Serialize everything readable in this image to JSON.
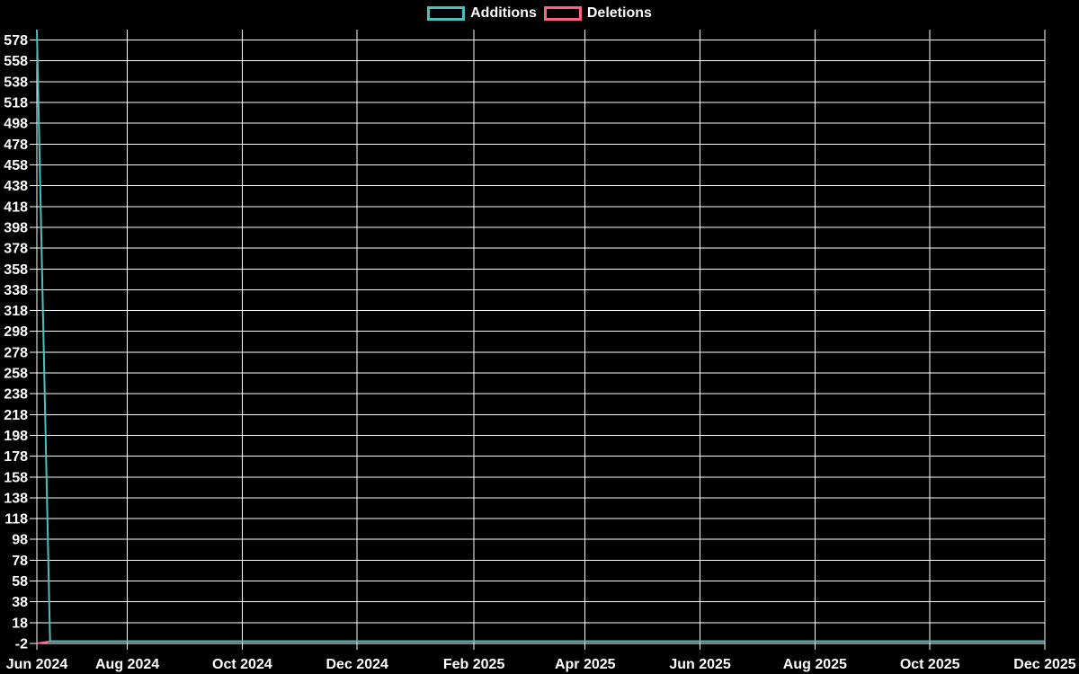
{
  "chart": {
    "background_color": "#000000",
    "text_color": "#ffffff",
    "grid_color": "#ffffff"
  },
  "chart_data": {
    "type": "line",
    "title": "",
    "legend_position": "top",
    "grid": true,
    "background_color": "#000000",
    "text_color": "#ffffff",
    "grid_color": "#ffffff",
    "x_axis": {
      "type": "time",
      "range": [
        "2024-06-14",
        "2025-12-01"
      ],
      "ticks": [
        {
          "label": "Jun 2024",
          "date": "2024-06-14"
        },
        {
          "label": "Aug 2024",
          "date": "2024-08-01"
        },
        {
          "label": "Oct 2024",
          "date": "2024-10-01"
        },
        {
          "label": "Dec 2024",
          "date": "2024-12-01"
        },
        {
          "label": "Feb 2025",
          "date": "2025-02-01"
        },
        {
          "label": "Apr 2025",
          "date": "2025-04-01"
        },
        {
          "label": "Jun 2025",
          "date": "2025-06-01"
        },
        {
          "label": "Aug 2025",
          "date": "2025-08-01"
        },
        {
          "label": "Oct 2025",
          "date": "2025-10-01"
        },
        {
          "label": "Dec 2025",
          "date": "2025-12-01"
        }
      ]
    },
    "y_axis": {
      "min": -2,
      "max": 588,
      "tick_step": 20,
      "ticks": [
        -2,
        18,
        38,
        58,
        78,
        98,
        118,
        138,
        158,
        178,
        198,
        218,
        238,
        258,
        278,
        298,
        318,
        338,
        358,
        378,
        398,
        418,
        438,
        458,
        478,
        498,
        518,
        538,
        558,
        578
      ]
    },
    "series": [
      {
        "name": "Additions",
        "color": "#4bc0c0",
        "points": [
          {
            "date": "2024-06-14",
            "value": 588
          },
          {
            "date": "2024-06-21",
            "value": 0
          },
          {
            "date": "2025-12-01",
            "value": 0
          }
        ]
      },
      {
        "name": "Deletions",
        "color": "#ff6384",
        "points": [
          {
            "date": "2024-06-14",
            "value": -2
          },
          {
            "date": "2024-06-21",
            "value": 0
          },
          {
            "date": "2025-12-01",
            "value": 0
          }
        ]
      }
    ]
  }
}
